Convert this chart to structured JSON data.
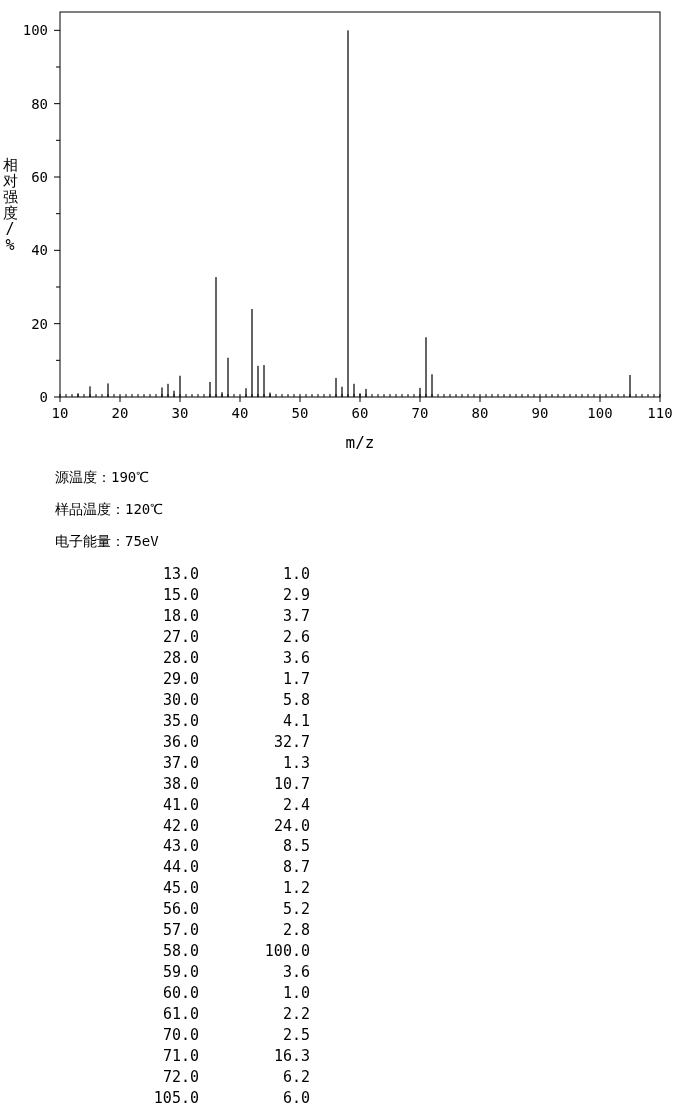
{
  "chart_data": [
    {
      "type": "bar",
      "xlabel": "m/z",
      "ylabel": "相对强度/%",
      "x": [
        13,
        15,
        18,
        27,
        28,
        29,
        30,
        35,
        36,
        37,
        38,
        41,
        42,
        43,
        44,
        45,
        56,
        57,
        58,
        59,
        60,
        61,
        70,
        71,
        72,
        105
      ],
      "values": [
        1.0,
        2.9,
        3.7,
        2.6,
        3.6,
        1.7,
        5.8,
        4.1,
        32.7,
        1.3,
        10.7,
        2.4,
        24.0,
        8.5,
        8.7,
        1.2,
        5.2,
        2.8,
        100.0,
        3.6,
        1.0,
        2.2,
        2.5,
        16.3,
        6.2,
        6.0
      ],
      "color": "#000000",
      "xlim": [
        10,
        110
      ],
      "xticks": [
        10,
        20,
        30,
        40,
        50,
        60,
        70,
        80,
        90,
        100,
        110
      ],
      "ylim": [
        0,
        105
      ],
      "yticks": [
        0,
        {
          "value": 10,
          "label": null
        },
        20,
        {
          "value": 30,
          "label": null
        },
        40,
        {
          "value": 50,
          "label": null
        },
        60,
        {
          "value": 70,
          "label": null
        },
        80,
        {
          "value": 90,
          "label": null
        },
        100
      ],
      "annotations": [
        "源温度：190℃",
        "样品温度：120℃",
        "电子能量：75eV"
      ]
    },
    {
      "type": "other",
      "annotations": [
        "13.0",
        "1.0",
        "15.0",
        "2.9",
        "18.0",
        "3.7",
        "27.0",
        "2.6",
        "28.0",
        "3.6",
        "29.0",
        "1.7",
        "30.0",
        "5.8",
        "35.0",
        "4.1",
        "36.0",
        "32.7",
        "37.0",
        "1.3",
        "38.0",
        "10.7",
        "41.0",
        "2.4",
        "42.0",
        "24.0",
        "43.0",
        "8.5",
        "44.0",
        "8.7",
        "45.0",
        "1.2",
        "56.0",
        "5.2",
        "57.0",
        "2.8",
        "58.0",
        "100.0",
        "59.0",
        "3.6",
        "60.0",
        "1.0",
        "61.0",
        "2.2",
        "70.0",
        "2.5",
        "71.0",
        "16.3",
        "72.0",
        "6.2",
        "105.0",
        "6.0"
      ]
    }
  ]
}
